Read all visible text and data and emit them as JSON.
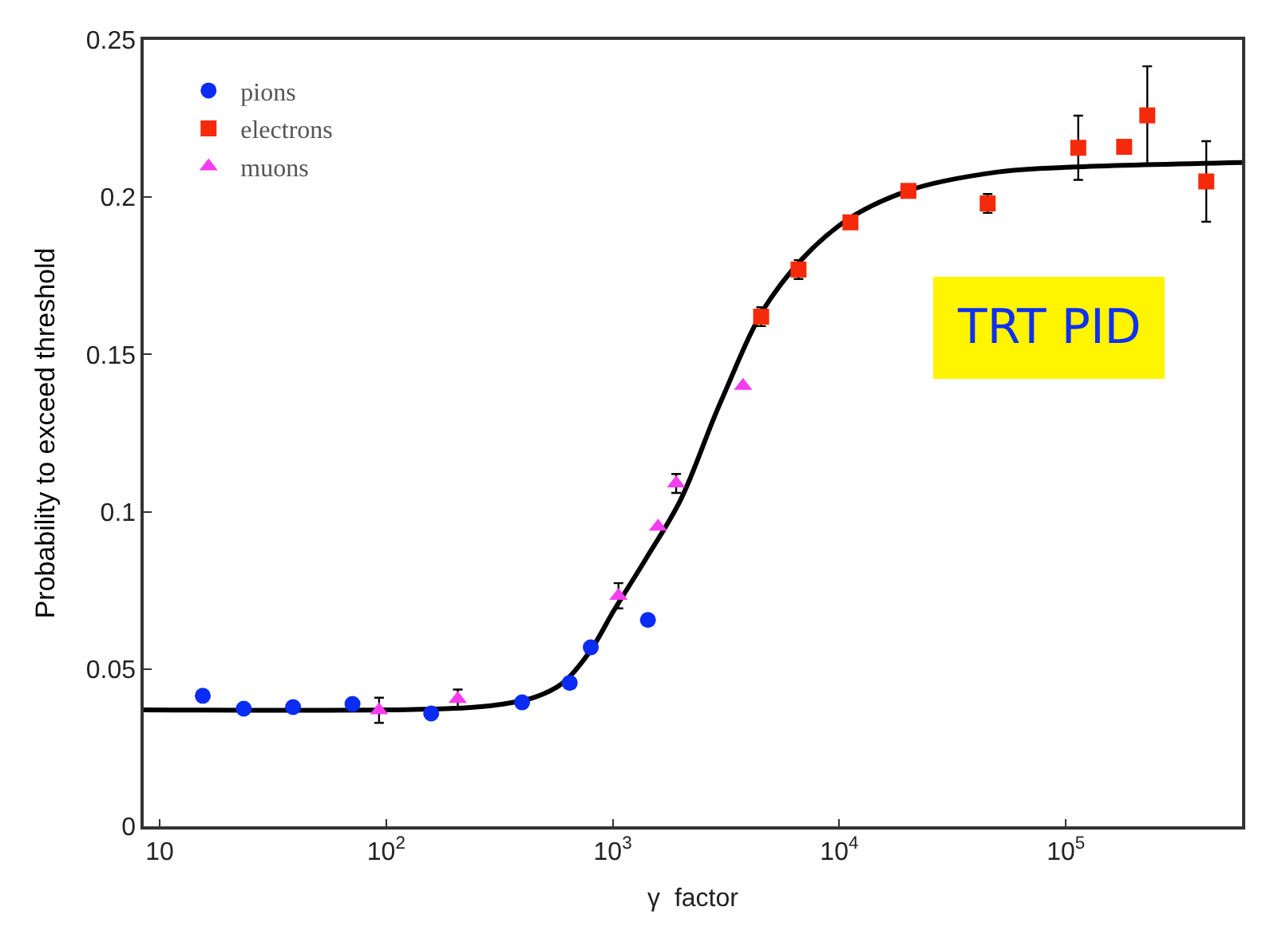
{
  "chart_data": {
    "type": "scatter",
    "xlabel": "γ  factor",
    "ylabel": "Probability to exceed threshold",
    "log": "x",
    "legend": "top left",
    "xlim": [
      8.5,
      600000
    ],
    "ylim": [
      0,
      0.25
    ],
    "xticks": [
      10,
      {
        "value": 100,
        "label": "10$^{2}$"
      },
      {
        "value": 1000,
        "label": "10$^{3}$"
      },
      {
        "value": 10000,
        "label": "10$^{4}$"
      },
      {
        "value": 100000,
        "label": "10$^{5}$"
      }
    ],
    "yticks": [
      0,
      0.05,
      0.1,
      0.15,
      0.2,
      0.25
    ],
    "annotations": [
      "TRT PID"
    ],
    "series": [
      {
        "name": "pions",
        "color": "#0a2cf5",
        "marker": "circle",
        "x": [
          15.5,
          23.5,
          38.8,
          71,
          158,
          398,
          646,
          800,
          1430
        ],
        "values": [
          0.0415,
          0.0374,
          0.0379,
          0.0389,
          0.0359,
          0.0394,
          0.0456,
          0.0569,
          0.0656
        ]
      },
      {
        "name": "electrons",
        "color": "#f52a0a",
        "marker": "square",
        "x": [
          4520,
          6610,
          11200,
          20200,
          45200,
          113500,
          181000,
          229000,
          417000
        ],
        "values": [
          0.162,
          0.177,
          0.192,
          0.202,
          0.198,
          0.2157,
          0.216,
          0.226,
          0.205
        ],
        "errors": [
          0.003,
          0.003,
          null,
          null,
          0.003,
          0.0102,
          null,
          0.0156,
          0.0128
        ]
      },
      {
        "name": "muons",
        "color": "#f53cf0",
        "marker": "triangle",
        "x": [
          93,
          207,
          1060,
          1585,
          1905,
          3760
        ],
        "values": [
          0.0369,
          0.0405,
          0.0733,
          0.0953,
          0.109,
          0.14
        ],
        "errors": [
          0.004,
          0.003,
          0.004,
          null,
          0.003,
          null
        ]
      },
      {
        "type": "line",
        "color": "#000000",
        "marker": "none",
        "line_style": "solid",
        "x": [
          8.5,
          100,
          200,
          300,
          450,
          600,
          800,
          1000,
          1400,
          2000,
          3000,
          5000,
          10000,
          20000,
          50000,
          100000,
          600000
        ],
        "values": [
          0.037,
          0.037,
          0.0375,
          0.0385,
          0.041,
          0.0455,
          0.056,
          0.068,
          0.085,
          0.104,
          0.135,
          0.168,
          0.191,
          0.202,
          0.208,
          0.2095,
          0.211
        ]
      }
    ]
  }
}
